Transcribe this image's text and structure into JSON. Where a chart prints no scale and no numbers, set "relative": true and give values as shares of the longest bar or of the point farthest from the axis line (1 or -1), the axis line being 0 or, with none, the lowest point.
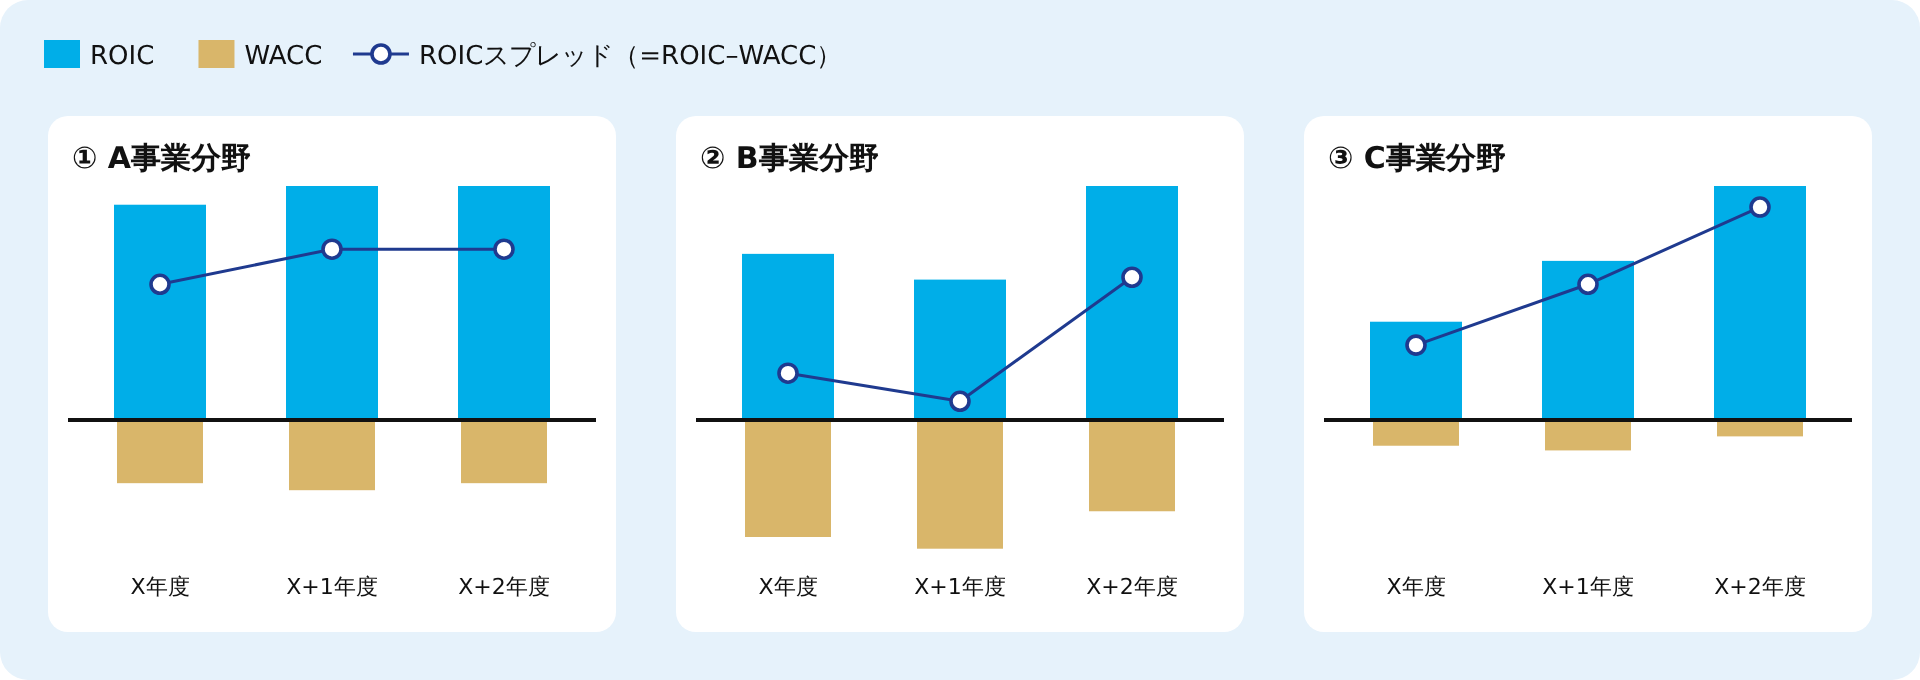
{
  "chart_data": [
    {
      "type": "bar",
      "title": "① A事業分野",
      "relative": true,
      "legend": "top",
      "marker": "circle",
      "categories": [
        "X年度",
        "X+1年度",
        "X+2年度"
      ],
      "series": [
        {
          "name": "ROIC",
          "color": "#00aee8",
          "values": [
            0.92,
            1,
            1
          ]
        },
        {
          "name": "WACC",
          "color": "#d9b66a",
          "values": [
            -0.27,
            -0.3,
            -0.27
          ]
        },
        {
          "name": "ROICスプレッド（=ROIC–WACC）",
          "type": "line",
          "color": "#1f3a8f",
          "values": [
            0.58,
            0.73,
            0.73
          ]
        }
      ]
    },
    {
      "type": "bar",
      "title": "② B事業分野",
      "relative": true,
      "marker": "circle",
      "categories": [
        "X年度",
        "X+1年度",
        "X+2年度"
      ],
      "series": [
        {
          "name": "ROIC",
          "color": "#00aee8",
          "values": [
            0.71,
            0.6,
            1
          ]
        },
        {
          "name": "WACC",
          "color": "#d9b66a",
          "values": [
            -0.5,
            -0.55,
            -0.39
          ]
        },
        {
          "name": "ROICスプレッド（=ROIC–WACC）",
          "type": "line",
          "color": "#1f3a8f",
          "values": [
            0.2,
            0.08,
            0.61
          ]
        }
      ]
    },
    {
      "type": "bar",
      "title": "③ C事業分野",
      "relative": true,
      "marker": "circle",
      "categories": [
        "X年度",
        "X+1年度",
        "X+2年度"
      ],
      "series": [
        {
          "name": "ROIC",
          "color": "#00aee8",
          "values": [
            0.42,
            0.68,
            1
          ]
        },
        {
          "name": "WACC",
          "color": "#d9b66a",
          "values": [
            -0.11,
            -0.13,
            -0.07
          ]
        },
        {
          "name": "ROICスプレッド（=ROIC–WACC）",
          "type": "line",
          "color": "#1f3a8f",
          "values": [
            0.32,
            0.58,
            0.91
          ]
        }
      ]
    }
  ]
}
